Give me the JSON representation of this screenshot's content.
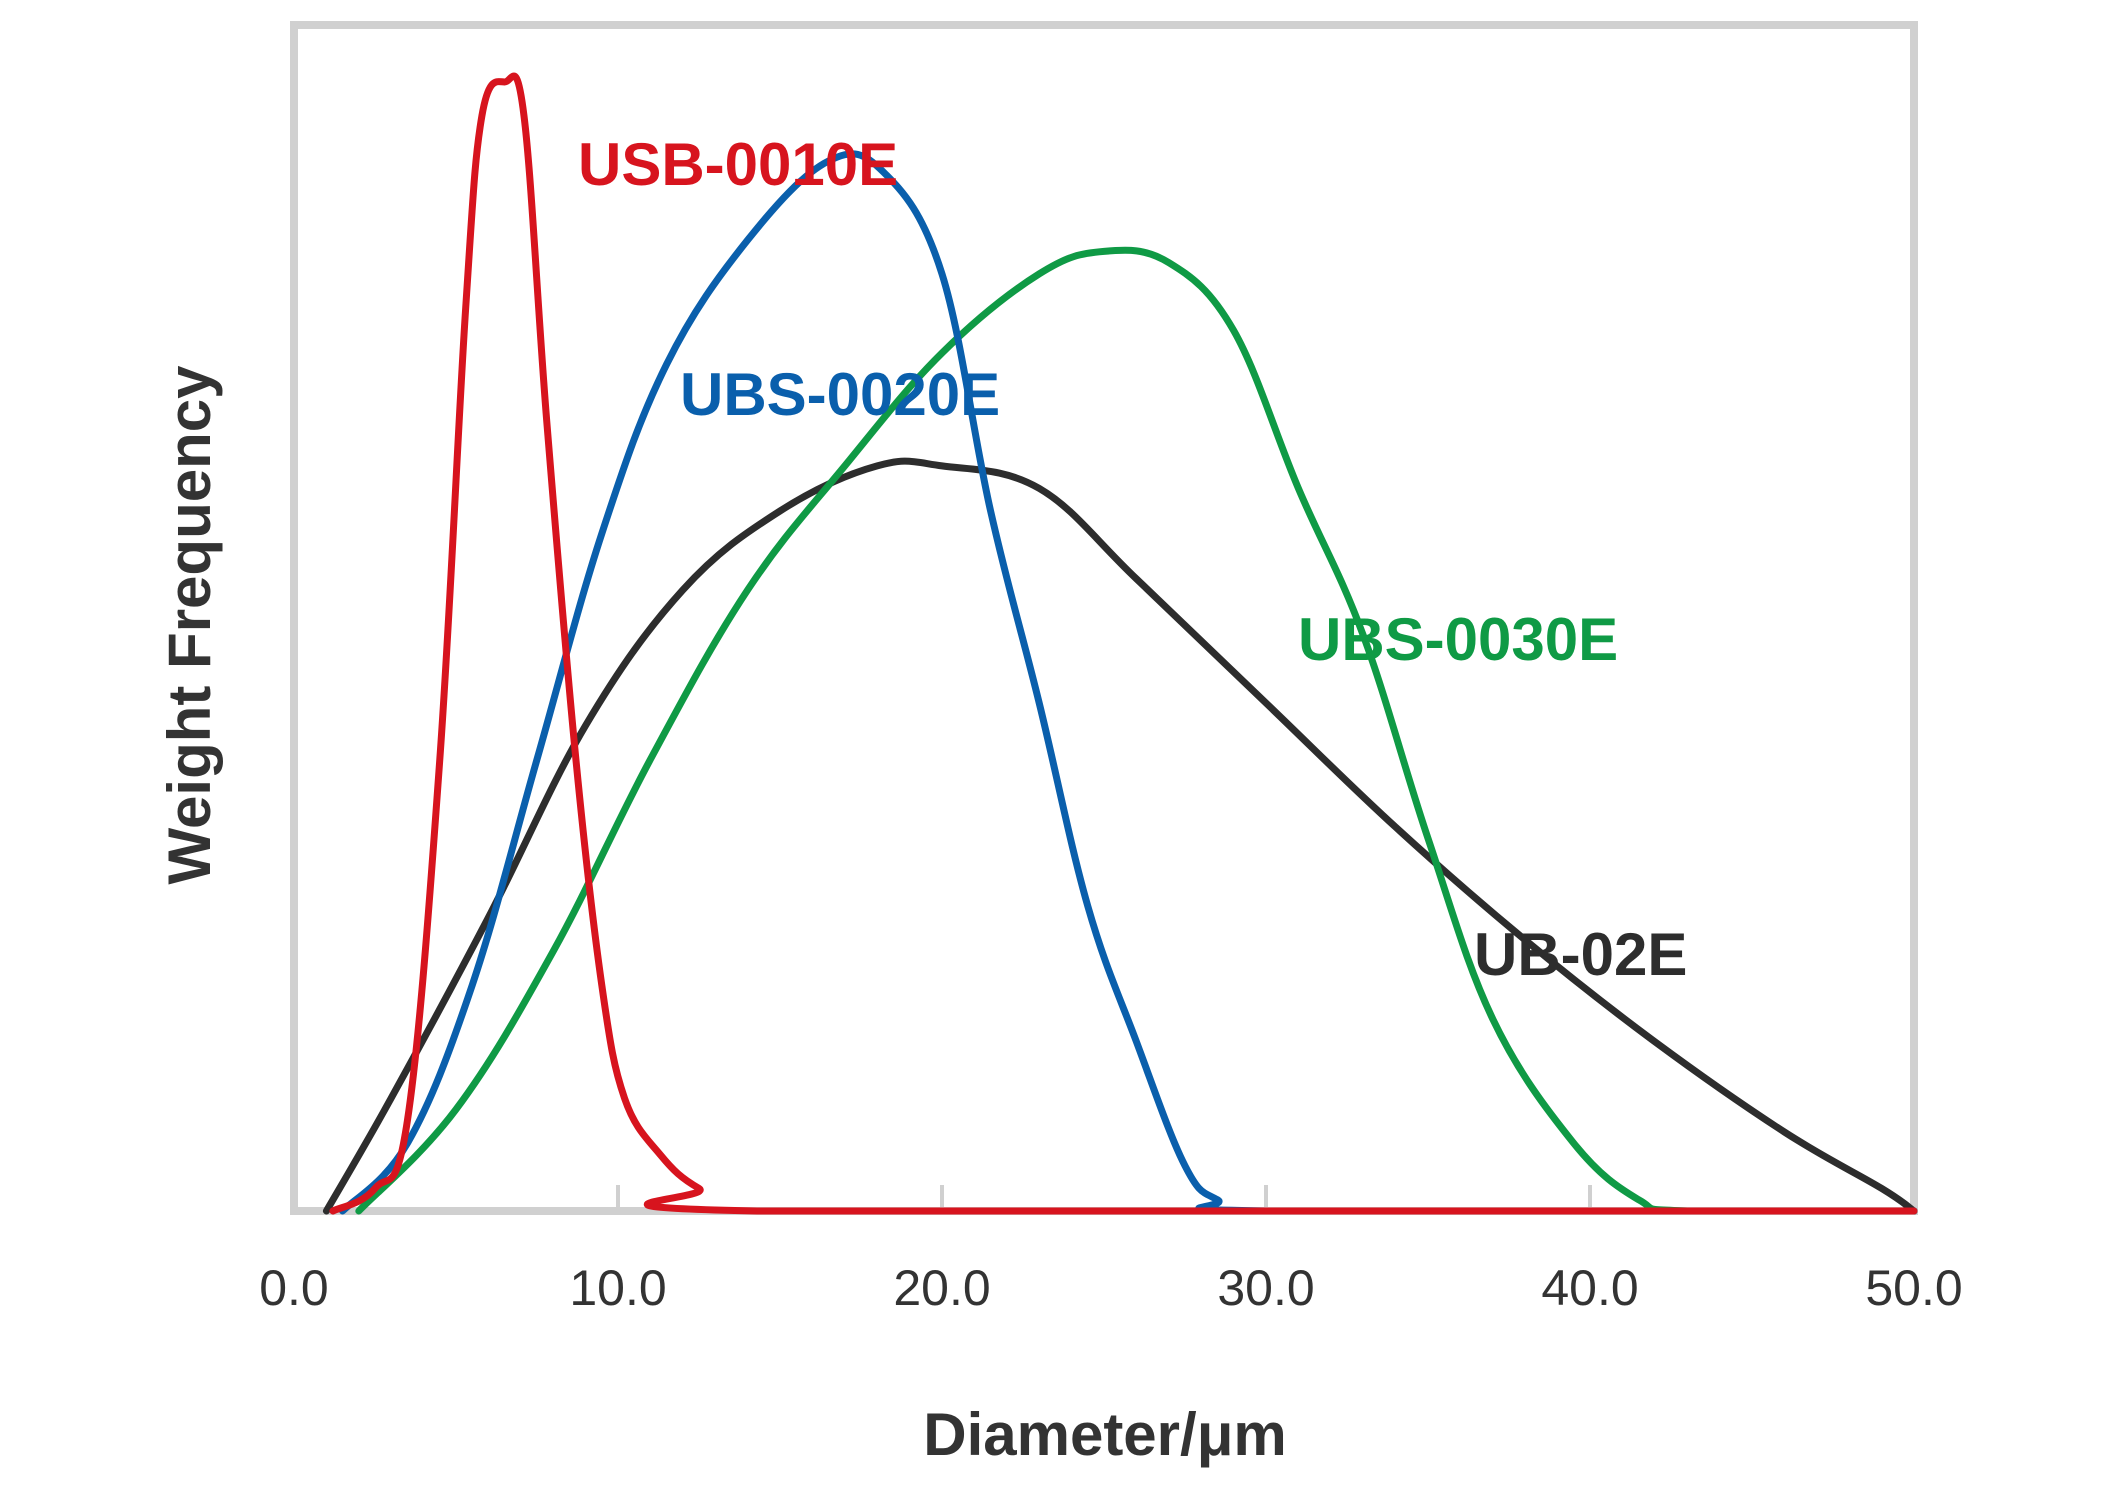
{
  "chart_data": {
    "type": "line",
    "title": "",
    "xlabel": "Diameter/μm",
    "ylabel": "Weight Frequency",
    "xlim": [
      0,
      50
    ],
    "ylim": [
      0,
      100
    ],
    "x_ticks": [
      "0.0",
      "10.0",
      "20.0",
      "30.0",
      "40.0",
      "50.0"
    ],
    "x_tick_values": [
      0,
      10,
      20,
      30,
      40,
      50
    ],
    "y_ticks_shown": false,
    "grid": false,
    "legend": "inline-labels",
    "series": [
      {
        "name": "USB-0010E",
        "color": "#d7141e",
        "points": [
          [
            1.2,
            0
          ],
          [
            2.5,
            2
          ],
          [
            3.5,
            8
          ],
          [
            4.5,
            40
          ],
          [
            5.3,
            80
          ],
          [
            5.8,
            97
          ],
          [
            6.5,
            100
          ],
          [
            7.1,
            97
          ],
          [
            7.8,
            70
          ],
          [
            8.7,
            40
          ],
          [
            9.5,
            20
          ],
          [
            10.2,
            10
          ],
          [
            11.3,
            5
          ],
          [
            12.5,
            2
          ],
          [
            14.3,
            0
          ],
          [
            50,
            0
          ]
        ]
      },
      {
        "name": "UBS-0020E",
        "color": "#0a5fac",
        "points": [
          [
            1.5,
            0
          ],
          [
            3.5,
            6
          ],
          [
            5.5,
            20
          ],
          [
            7.5,
            40
          ],
          [
            9.5,
            60
          ],
          [
            11.5,
            75
          ],
          [
            14,
            86
          ],
          [
            16.5,
            93
          ],
          [
            18.2,
            92
          ],
          [
            20,
            83
          ],
          [
            21.5,
            62
          ],
          [
            23,
            45
          ],
          [
            24.5,
            27
          ],
          [
            26,
            15
          ],
          [
            27.5,
            4
          ],
          [
            28.5,
            1
          ],
          [
            30,
            0
          ],
          [
            50,
            0
          ]
        ]
      },
      {
        "name": "UBS-0030E",
        "color": "#0f9a45",
        "points": [
          [
            2,
            0
          ],
          [
            5,
            9
          ],
          [
            8,
            23
          ],
          [
            11,
            40
          ],
          [
            14,
            55
          ],
          [
            17,
            66
          ],
          [
            20,
            76
          ],
          [
            23,
            83
          ],
          [
            25,
            85
          ],
          [
            27,
            84
          ],
          [
            29,
            78
          ],
          [
            31,
            64
          ],
          [
            33,
            51
          ],
          [
            35,
            33
          ],
          [
            37,
            17
          ],
          [
            39.5,
            6
          ],
          [
            41.5,
            1
          ],
          [
            43,
            0
          ],
          [
            50,
            0
          ]
        ]
      },
      {
        "name": "UB-02E",
        "color": "#2d2d2d",
        "points": [
          [
            1,
            0
          ],
          [
            3,
            10
          ],
          [
            6,
            26
          ],
          [
            9,
            43
          ],
          [
            12,
            55
          ],
          [
            15,
            62
          ],
          [
            18,
            66
          ],
          [
            20,
            66
          ],
          [
            23,
            64
          ],
          [
            26,
            56
          ],
          [
            30,
            45
          ],
          [
            34,
            34
          ],
          [
            38,
            24
          ],
          [
            42,
            15
          ],
          [
            46,
            7
          ],
          [
            49,
            2
          ],
          [
            50,
            0
          ]
        ]
      }
    ]
  }
}
